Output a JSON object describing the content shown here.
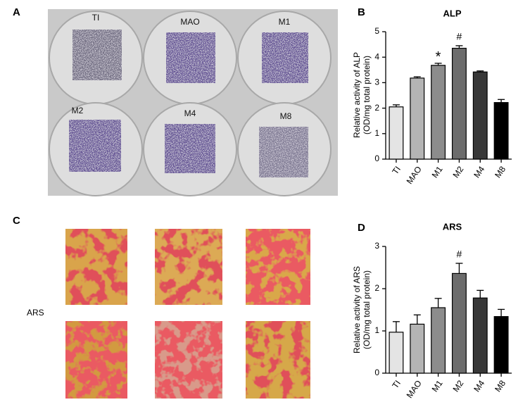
{
  "panels": [
    "A",
    "B",
    "C",
    "D"
  ],
  "wells": [
    "TI",
    "MAO",
    "M1",
    "M2",
    "M4",
    "M8"
  ],
  "stain_label": "ARS",
  "chart_data": [
    {
      "type": "bar",
      "title": "ALP",
      "ylabel": [
        "Relative activity of ALP",
        "(OD/mg total protein)"
      ],
      "categories": [
        "TI",
        "MAO",
        "M1",
        "M2",
        "M4",
        "M8"
      ],
      "values": [
        2.05,
        3.18,
        3.68,
        4.35,
        3.42,
        2.22
      ],
      "errors": [
        0.08,
        0.05,
        0.08,
        0.1,
        0.04,
        0.12
      ],
      "colors": [
        "#e4e4e4",
        "#b4b4b4",
        "#8c8c8c",
        "#6c6c6c",
        "#383838",
        "#000000"
      ],
      "ylim": [
        0,
        5
      ],
      "yticks": [
        0,
        1,
        2,
        3,
        4,
        5
      ],
      "annotations": [
        {
          "text": "*",
          "x": "M1"
        },
        {
          "text": "#",
          "x": "M2"
        }
      ]
    },
    {
      "type": "bar",
      "title": "ARS",
      "ylabel": [
        "Relative activity of ARS",
        "(OD/mg total protein)"
      ],
      "categories": [
        "TI",
        "MAO",
        "M1",
        "M2",
        "M4",
        "M8"
      ],
      "values": [
        0.97,
        1.16,
        1.55,
        2.36,
        1.78,
        1.34
      ],
      "errors": [
        0.25,
        0.22,
        0.22,
        0.24,
        0.18,
        0.17
      ],
      "colors": [
        "#e4e4e4",
        "#b4b4b4",
        "#8c8c8c",
        "#6c6c6c",
        "#383838",
        "#000000"
      ],
      "ylim": [
        0,
        3
      ],
      "yticks": [
        0,
        1,
        2,
        3
      ],
      "annotations": [
        {
          "text": "#",
          "x": "M2"
        }
      ]
    }
  ]
}
